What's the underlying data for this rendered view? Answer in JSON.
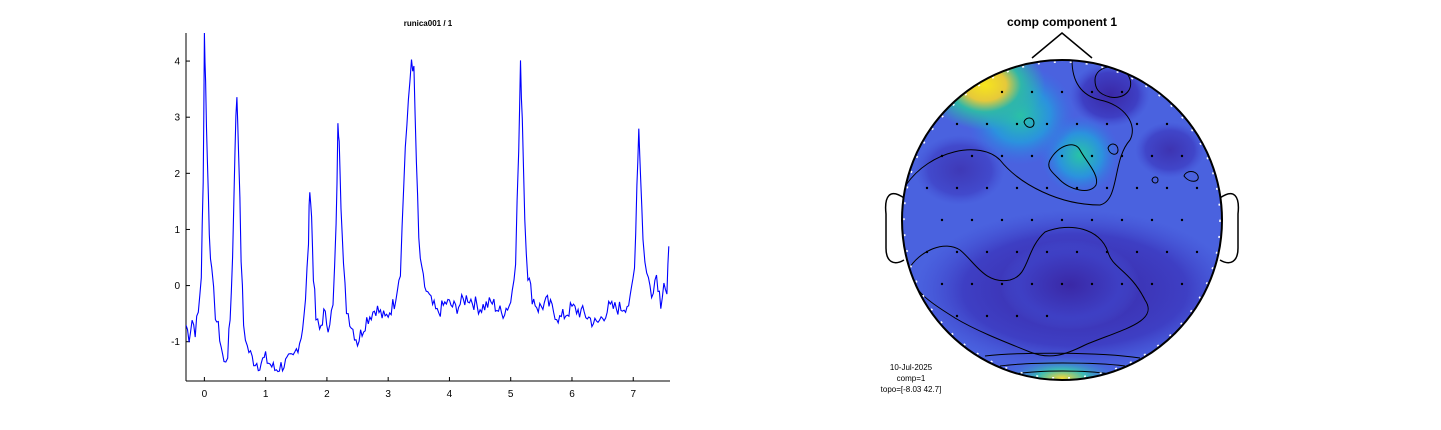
{
  "chart_data": [
    {
      "type": "line",
      "title": "runica001 / 1",
      "xlabel": "",
      "ylabel": "",
      "xlim": [
        -0.3,
        7.6
      ],
      "ylim": [
        -1.7,
        4.5
      ],
      "xticks": [
        "0",
        "1",
        "2",
        "3",
        "4",
        "5",
        "6",
        "7"
      ],
      "yticks": [
        "-1",
        "0",
        "1",
        "2",
        "3",
        "4"
      ],
      "grid": false,
      "line_color": "#0000ff",
      "series": [
        {
          "x": [
            -0.3,
            -0.25,
            -0.2,
            -0.15,
            -0.1,
            -0.05,
            -0.02,
            0.0,
            0.02,
            0.05,
            0.08,
            0.12,
            0.18,
            0.25,
            0.32,
            0.38,
            0.42,
            0.46,
            0.5,
            0.53,
            0.56,
            0.6,
            0.64,
            0.7,
            0.78,
            0.88,
            1.0,
            1.15,
            1.3,
            1.45,
            1.58,
            1.65,
            1.7,
            1.72,
            1.75,
            1.78,
            1.82,
            1.88,
            1.95,
            2.02,
            2.1,
            2.15,
            2.18,
            2.2,
            2.23,
            2.27,
            2.32,
            2.4,
            2.5,
            2.65,
            2.8,
            2.95,
            3.1,
            3.2,
            3.28,
            3.33,
            3.38,
            3.42,
            3.46,
            3.5,
            3.55,
            3.62,
            3.7,
            3.8,
            3.95,
            4.1,
            4.3,
            4.5,
            4.7,
            4.85,
            5.0,
            5.08,
            5.13,
            5.16,
            5.19,
            5.23,
            5.28,
            5.35,
            5.45,
            5.6,
            5.8,
            6.0,
            6.2,
            6.4,
            6.6,
            6.8,
            6.95,
            7.02,
            7.06,
            7.09,
            7.12,
            7.16,
            7.22,
            7.3,
            7.38,
            7.45,
            7.5,
            7.55,
            7.58
          ],
          "values": [
            -0.7,
            -0.9,
            -0.6,
            -0.8,
            -0.5,
            0.2,
            1.8,
            4.5,
            3.6,
            2.2,
            1.0,
            0.2,
            -0.5,
            -0.9,
            -1.4,
            -1.2,
            -0.6,
            0.5,
            2.5,
            3.4,
            2.4,
            0.5,
            -0.7,
            -1.1,
            -1.3,
            -1.4,
            -1.3,
            -1.5,
            -1.4,
            -1.3,
            -0.9,
            -0.3,
            0.8,
            1.8,
            1.2,
            0.2,
            -0.6,
            -0.8,
            -0.5,
            -0.7,
            -0.4,
            1.0,
            2.8,
            2.7,
            1.5,
            0.3,
            -0.4,
            -0.7,
            -1.0,
            -0.6,
            -0.4,
            -0.6,
            -0.3,
            0.3,
            2.5,
            3.2,
            4.05,
            3.8,
            2.2,
            0.8,
            0.2,
            -0.1,
            -0.3,
            -0.5,
            -0.3,
            -0.4,
            -0.2,
            -0.4,
            -0.3,
            -0.5,
            -0.3,
            0.5,
            2.4,
            3.9,
            3.0,
            1.2,
            0.2,
            -0.2,
            -0.4,
            -0.3,
            -0.6,
            -0.4,
            -0.5,
            -0.7,
            -0.4,
            -0.4,
            -0.3,
            0.3,
            1.8,
            2.8,
            2.0,
            0.8,
            0.2,
            -0.1,
            0.2,
            -0.3,
            0.1,
            -0.2,
            0.7
          ]
        }
      ]
    },
    {
      "type": "heatmap",
      "title": "comp component 1",
      "legend": "none",
      "colors": {
        "low": "#3b2ca8",
        "mid": "#4a6fe3",
        "high_mid": "#1fb4b8",
        "high": "#f5e01e"
      },
      "electrodes": 64
    }
  ],
  "info": {
    "date": "10-Jul-2025",
    "comp": "comp=1",
    "topo": "topo=[-8.03 42.7]"
  }
}
